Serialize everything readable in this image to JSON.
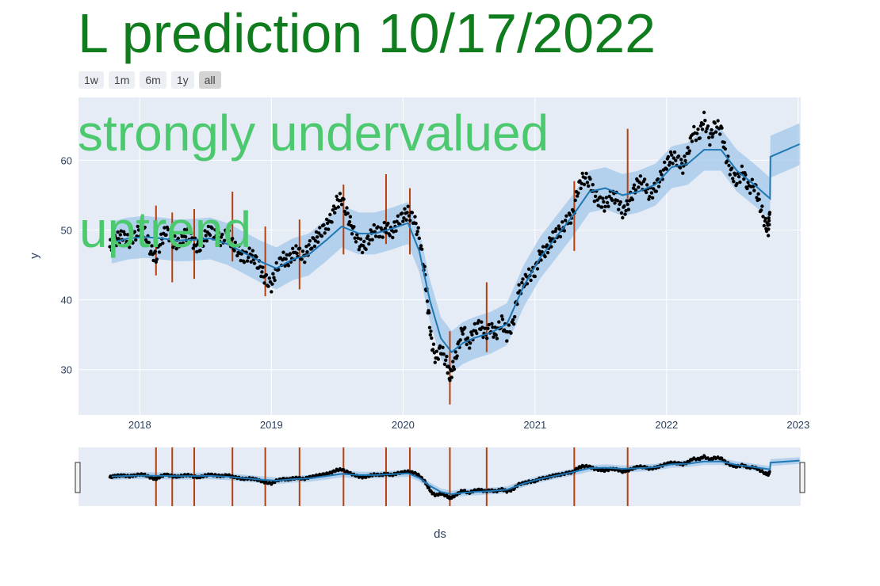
{
  "title": "L prediction 10/17/2022",
  "annotations": [
    "strongly undervalued",
    "uptrend"
  ],
  "range_selector": [
    {
      "label": "1w",
      "active": false
    },
    {
      "label": "1m",
      "active": false
    },
    {
      "label": "6m",
      "active": false
    },
    {
      "label": "1y",
      "active": false
    },
    {
      "label": "all",
      "active": true
    }
  ],
  "colors": {
    "title": "#0f7d1e",
    "annotation": "#4cc86f",
    "plot_bg": "#e5ecf6",
    "forecast": "#1f77b4",
    "uncertainty": "#9ec5e8",
    "actual": "#000000",
    "changepoint": "#b5400e"
  },
  "chart_data": {
    "type": "line",
    "xlabel": "ds",
    "ylabel": "y",
    "xlim": [
      "2017-07-15",
      "2023-01-08"
    ],
    "ylim": [
      23.5,
      69
    ],
    "x_ticks": [
      "2018",
      "2019",
      "2020",
      "2021",
      "2022",
      "2023"
    ],
    "y_ticks": [
      30,
      40,
      50,
      60
    ],
    "grid": true,
    "legend": "none",
    "series": [
      {
        "type": "forecast",
        "points": [
          [
            "2017-10-15",
            48.2
          ],
          [
            "2017-12-01",
            48.8
          ],
          [
            "2018-01-15",
            49.0
          ],
          [
            "2018-03-01",
            48.8
          ],
          [
            "2018-04-15",
            48.5
          ],
          [
            "2018-06-01",
            48.6
          ],
          [
            "2018-07-15",
            48.8
          ],
          [
            "2018-09-01",
            48.0
          ],
          [
            "2018-10-15",
            46.8
          ],
          [
            "2018-12-01",
            45.5
          ],
          [
            "2019-01-15",
            44.5
          ],
          [
            "2019-03-01",
            45.8
          ],
          [
            "2019-04-15",
            46.5
          ],
          [
            "2019-06-01",
            48.5
          ],
          [
            "2019-07-15",
            50.5
          ],
          [
            "2019-09-01",
            49.5
          ],
          [
            "2019-10-15",
            49.5
          ],
          [
            "2019-12-01",
            50.2
          ],
          [
            "2020-01-15",
            51.0
          ],
          [
            "2020-02-15",
            47.0
          ],
          [
            "2020-03-15",
            40.0
          ],
          [
            "2020-04-15",
            34.5
          ],
          [
            "2020-05-15",
            32.5
          ],
          [
            "2020-06-15",
            33.8
          ],
          [
            "2020-07-15",
            34.5
          ],
          [
            "2020-09-01",
            35.3
          ],
          [
            "2020-10-15",
            36.5
          ],
          [
            "2020-12-01",
            42.0
          ],
          [
            "2021-01-15",
            46.0
          ],
          [
            "2021-03-01",
            49.0
          ],
          [
            "2021-04-15",
            52.0
          ],
          [
            "2021-06-01",
            55.5
          ],
          [
            "2021-07-15",
            56.0
          ],
          [
            "2021-09-01",
            55.0
          ],
          [
            "2021-10-15",
            55.5
          ],
          [
            "2021-12-01",
            56.5
          ],
          [
            "2022-01-15",
            59.0
          ],
          [
            "2022-03-01",
            59.5
          ],
          [
            "2022-04-15",
            61.5
          ],
          [
            "2022-06-01",
            61.5
          ],
          [
            "2022-07-15",
            58.5
          ],
          [
            "2022-09-01",
            56.5
          ],
          [
            "2022-10-15",
            54.5
          ],
          [
            "2022-10-16",
            60.5
          ],
          [
            "2023-01-05",
            62.3
          ]
        ],
        "band_width": 3.0
      },
      {
        "type": "actual",
        "points": [
          [
            "2017-10-10",
            47.6
          ],
          [
            "2017-10-20",
            48.3
          ],
          [
            "2017-11-01",
            48.8
          ],
          [
            "2017-11-15",
            49.2
          ],
          [
            "2017-12-01",
            48.3
          ],
          [
            "2017-12-15",
            49.0
          ],
          [
            "2018-01-01",
            50.0
          ],
          [
            "2018-01-15",
            49.7
          ],
          [
            "2018-02-01",
            47.0
          ],
          [
            "2018-02-15",
            46.0
          ],
          [
            "2018-03-01",
            48.5
          ],
          [
            "2018-03-15",
            50.0
          ],
          [
            "2018-04-01",
            48.5
          ],
          [
            "2018-04-15",
            48.0
          ],
          [
            "2018-05-01",
            49.0
          ],
          [
            "2018-05-15",
            49.5
          ],
          [
            "2018-06-01",
            48.0
          ],
          [
            "2018-06-15",
            47.5
          ],
          [
            "2018-07-01",
            49.0
          ],
          [
            "2018-07-15",
            50.0
          ],
          [
            "2018-08-01",
            49.0
          ],
          [
            "2018-08-15",
            48.5
          ],
          [
            "2018-09-01",
            49.5
          ],
          [
            "2018-09-15",
            48.0
          ],
          [
            "2018-10-01",
            47.0
          ],
          [
            "2018-10-15",
            46.0
          ],
          [
            "2018-11-01",
            46.5
          ],
          [
            "2018-11-15",
            46.0
          ],
          [
            "2018-12-01",
            44.5
          ],
          [
            "2018-12-15",
            43.0
          ],
          [
            "2019-01-01",
            42.0
          ],
          [
            "2019-01-15",
            44.5
          ],
          [
            "2019-02-01",
            46.0
          ],
          [
            "2019-02-15",
            45.5
          ],
          [
            "2019-03-01",
            46.5
          ],
          [
            "2019-03-15",
            47.0
          ],
          [
            "2019-04-01",
            46.0
          ],
          [
            "2019-04-15",
            47.5
          ],
          [
            "2019-05-01",
            48.5
          ],
          [
            "2019-05-15",
            49.5
          ],
          [
            "2019-06-01",
            50.5
          ],
          [
            "2019-06-15",
            51.5
          ],
          [
            "2019-07-01",
            54.0
          ],
          [
            "2019-07-15",
            54.5
          ],
          [
            "2019-08-01",
            52.0
          ],
          [
            "2019-08-15",
            50.0
          ],
          [
            "2019-09-01",
            48.0
          ],
          [
            "2019-09-15",
            47.5
          ],
          [
            "2019-10-01",
            49.0
          ],
          [
            "2019-10-15",
            50.0
          ],
          [
            "2019-11-01",
            49.5
          ],
          [
            "2019-11-15",
            50.5
          ],
          [
            "2019-12-01",
            49.5
          ],
          [
            "2019-12-15",
            51.0
          ],
          [
            "2020-01-01",
            52.0
          ],
          [
            "2020-01-15",
            52.5
          ],
          [
            "2020-02-01",
            51.5
          ],
          [
            "2020-02-15",
            49.0
          ],
          [
            "2020-03-01",
            44.0
          ],
          [
            "2020-03-10",
            39.0
          ],
          [
            "2020-03-20",
            34.0
          ],
          [
            "2020-04-01",
            31.5
          ],
          [
            "2020-04-15",
            33.0
          ],
          [
            "2020-05-01",
            31.0
          ],
          [
            "2020-05-10",
            29.0
          ],
          [
            "2020-05-20",
            30.5
          ],
          [
            "2020-06-01",
            33.0
          ],
          [
            "2020-06-15",
            36.0
          ],
          [
            "2020-07-01",
            33.5
          ],
          [
            "2020-07-15",
            35.5
          ],
          [
            "2020-08-01",
            36.5
          ],
          [
            "2020-08-15",
            35.0
          ],
          [
            "2020-09-01",
            36.0
          ],
          [
            "2020-09-15",
            35.0
          ],
          [
            "2020-10-01",
            37.0
          ],
          [
            "2020-10-15",
            35.0
          ],
          [
            "2020-11-01",
            36.5
          ],
          [
            "2020-11-15",
            41.0
          ],
          [
            "2020-12-01",
            42.5
          ],
          [
            "2020-12-15",
            43.5
          ],
          [
            "2021-01-01",
            44.0
          ],
          [
            "2021-01-15",
            46.5
          ],
          [
            "2021-02-01",
            47.0
          ],
          [
            "2021-02-15",
            48.5
          ],
          [
            "2021-03-01",
            49.5
          ],
          [
            "2021-03-15",
            50.0
          ],
          [
            "2021-04-01",
            51.5
          ],
          [
            "2021-04-15",
            52.0
          ],
          [
            "2021-05-01",
            56.0
          ],
          [
            "2021-05-15",
            57.5
          ],
          [
            "2021-06-01",
            57.0
          ],
          [
            "2021-06-15",
            55.0
          ],
          [
            "2021-07-01",
            54.0
          ],
          [
            "2021-07-15",
            53.5
          ],
          [
            "2021-08-01",
            55.0
          ],
          [
            "2021-08-15",
            54.5
          ],
          [
            "2021-09-01",
            52.5
          ],
          [
            "2021-09-15",
            53.5
          ],
          [
            "2021-10-01",
            55.5
          ],
          [
            "2021-10-15",
            57.0
          ],
          [
            "2021-11-01",
            56.5
          ],
          [
            "2021-11-15",
            55.0
          ],
          [
            "2021-12-01",
            56.0
          ],
          [
            "2021-12-15",
            57.5
          ],
          [
            "2022-01-01",
            59.5
          ],
          [
            "2022-01-15",
            60.5
          ],
          [
            "2022-02-01",
            60.0
          ],
          [
            "2022-02-15",
            59.0
          ],
          [
            "2022-03-01",
            61.0
          ],
          [
            "2022-03-15",
            64.0
          ],
          [
            "2022-04-01",
            63.5
          ],
          [
            "2022-04-15",
            66.0
          ],
          [
            "2022-05-01",
            63.0
          ],
          [
            "2022-05-15",
            65.0
          ],
          [
            "2022-06-01",
            64.5
          ],
          [
            "2022-06-15",
            60.5
          ],
          [
            "2022-07-01",
            58.0
          ],
          [
            "2022-07-15",
            57.0
          ],
          [
            "2022-08-01",
            58.5
          ],
          [
            "2022-08-15",
            56.0
          ],
          [
            "2022-09-01",
            56.5
          ],
          [
            "2022-09-15",
            54.0
          ],
          [
            "2022-10-01",
            51.0
          ],
          [
            "2022-10-10",
            50.0
          ],
          [
            "2022-10-14",
            52.5
          ]
        ]
      },
      {
        "type": "changepoints",
        "dates": [
          "2018-02-15",
          "2018-04-01",
          "2018-06-01",
          "2018-09-15",
          "2018-12-15",
          "2019-03-20",
          "2019-07-20",
          "2019-11-15",
          "2020-01-20",
          "2020-05-10",
          "2020-08-20",
          "2021-04-20",
          "2021-09-15"
        ],
        "ranges": [
          [
            43.5,
            53.5
          ],
          [
            42.5,
            52.5
          ],
          [
            43.0,
            53.0
          ],
          [
            45.5,
            55.5
          ],
          [
            40.5,
            50.5
          ],
          [
            41.5,
            51.5
          ],
          [
            46.5,
            56.5
          ],
          [
            48.0,
            58.0
          ],
          [
            46.5,
            56.0
          ],
          [
            25.0,
            35.5
          ],
          [
            32.5,
            42.5
          ],
          [
            47.0,
            57.0
          ],
          [
            54.5,
            64.5
          ]
        ]
      }
    ]
  }
}
